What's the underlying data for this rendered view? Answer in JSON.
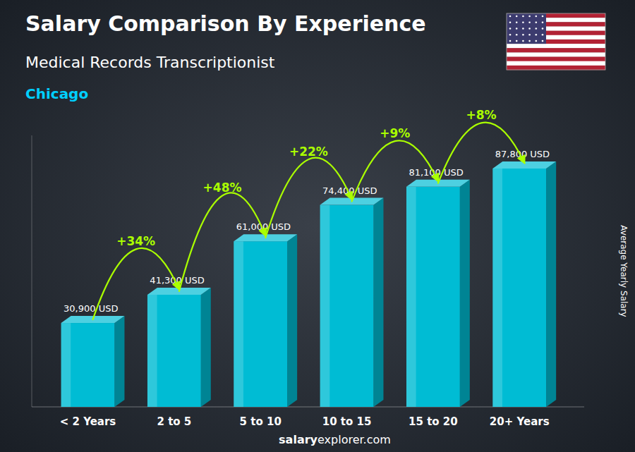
{
  "chart_data": {
    "type": "bar",
    "title": "Salary Comparison By Experience",
    "subtitle": [
      "Medical Records Transcriptionist",
      "Chicago"
    ],
    "ylabel": "Average Yearly Salary",
    "categories": [
      "< 2 Years",
      "2 to 5",
      "5 to 10",
      "10 to 15",
      "15 to 20",
      "20+ Years"
    ],
    "values": [
      30900,
      41300,
      61000,
      74400,
      81100,
      87800
    ],
    "value_labels": [
      "30,900 USD",
      "41,300 USD",
      "61,000 USD",
      "74,400 USD",
      "81,100 USD",
      "87,800 USD"
    ],
    "data_labels": true,
    "annotations": [
      "+34%",
      "+48%",
      "+22%",
      "+9%",
      "+8%"
    ],
    "footer": [
      "salary",
      "explorer.com"
    ],
    "color": "#00bcd4",
    "ylim": [
      0,
      100000
    ],
    "grid": false,
    "tick_labels": "x"
  }
}
